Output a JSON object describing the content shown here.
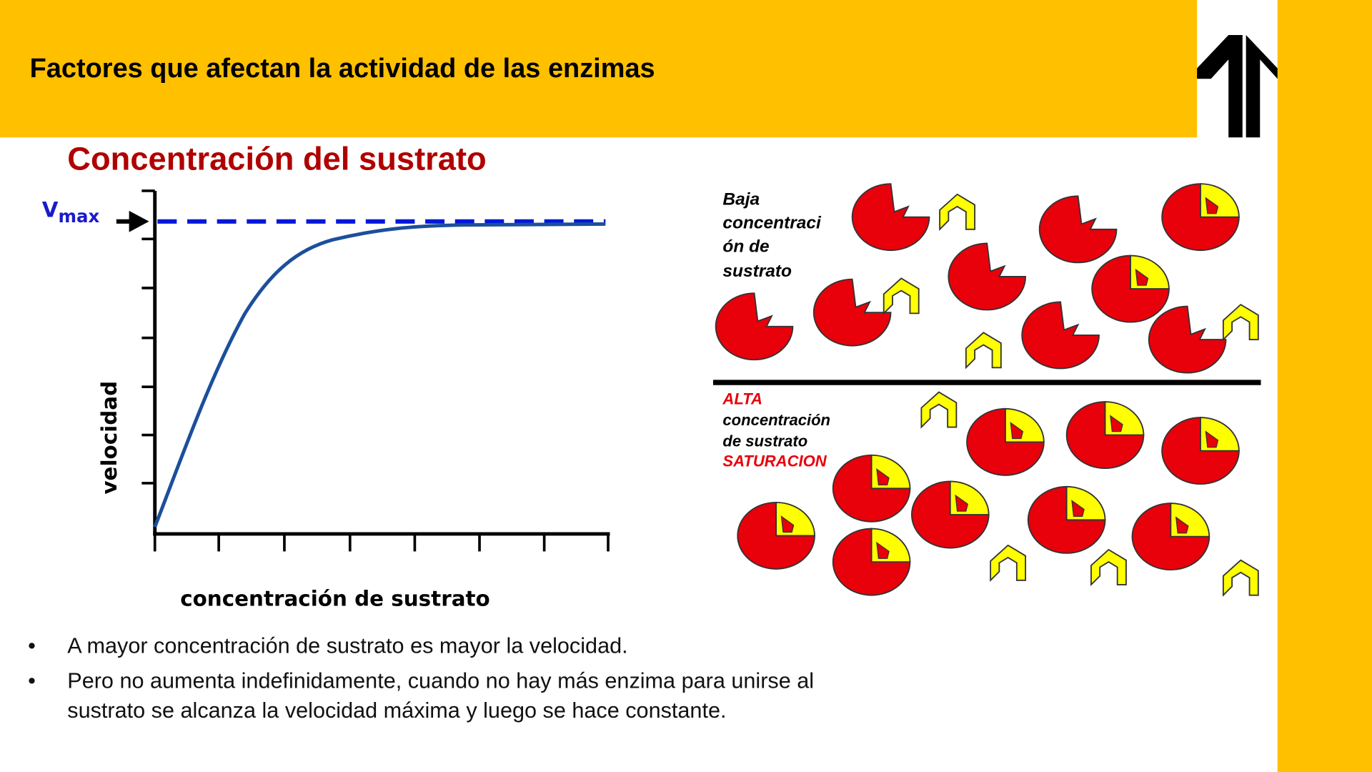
{
  "header": {
    "title": "Factores que afectan la actividad de las enzimas"
  },
  "subtitle": "Concentración del sustrato",
  "graph": {
    "vmax_label": "V",
    "vmax_sub": "max",
    "y_label": "velocidad",
    "x_label": "concentración de sustrato"
  },
  "diagram": {
    "low": [
      "Baja",
      "concentraci",
      "ón de",
      "sustrato"
    ],
    "high": {
      "level": "ALTA",
      "lines": [
        "concentración",
        "de sustrato"
      ],
      "state": "SATURACION"
    }
  },
  "bullets": [
    [
      "A mayor concentración de sustrato es mayor la velocidad."
    ],
    [
      "Pero no aumenta indefinidamente, cuando no hay más enzima para unirse al",
      "sustrato se alcanza la velocidad máxima y luego se hace constante."
    ]
  ]
}
